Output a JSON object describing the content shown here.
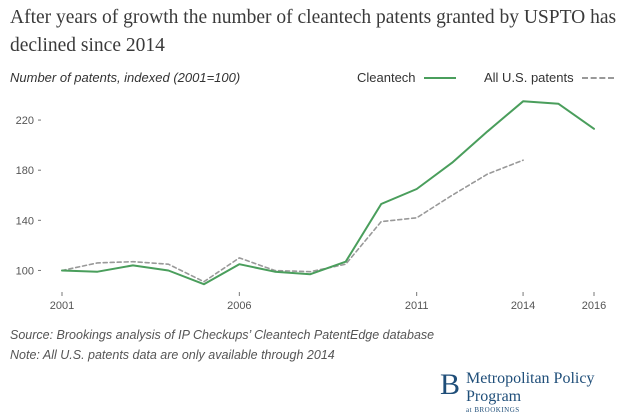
{
  "chart_data": {
    "type": "line",
    "title": "After years of growth the number of cleantech patents granted by USPTO has declined since 2014",
    "ylabel": "Number of patents, indexed (2001=100)",
    "xlabel": "",
    "x_ticks": [
      "2001",
      "2006",
      "2011",
      "2014",
      "2016"
    ],
    "y_ticks": [
      "100",
      "140",
      "180",
      "220"
    ],
    "xlim": [
      2001,
      2016
    ],
    "ylim": [
      86,
      240
    ],
    "legend_position": "top-right",
    "grid": false,
    "series": [
      {
        "name": "Cleantech",
        "style": "solid",
        "color": "#4a9e5c",
        "x": [
          2001,
          2002,
          2003,
          2004,
          2005,
          2006,
          2007,
          2008,
          2009,
          2010,
          2011,
          2012,
          2013,
          2014,
          2015,
          2016
        ],
        "y": [
          100,
          99,
          104,
          100,
          89,
          105,
          99,
          97,
          107,
          153,
          165,
          186,
          211,
          235,
          233,
          213
        ]
      },
      {
        "name": "All U.S. patents",
        "style": "dashed",
        "color": "#999999",
        "x": [
          2001,
          2002,
          2003,
          2004,
          2005,
          2006,
          2007,
          2008,
          2009,
          2010,
          2011,
          2012,
          2013,
          2014
        ],
        "y": [
          100,
          106,
          107,
          105,
          91,
          110,
          100,
          99,
          105,
          139,
          142,
          160,
          177,
          188
        ]
      }
    ],
    "source": "Source: Brookings analysis of IP Checkups’ Cleantech PatentEdge database",
    "note": "Note: All U.S. patents data are only available through 2014"
  },
  "branding": {
    "logo": "B",
    "name": "Metropolitan Policy Program",
    "sub": "at BROOKINGS"
  }
}
